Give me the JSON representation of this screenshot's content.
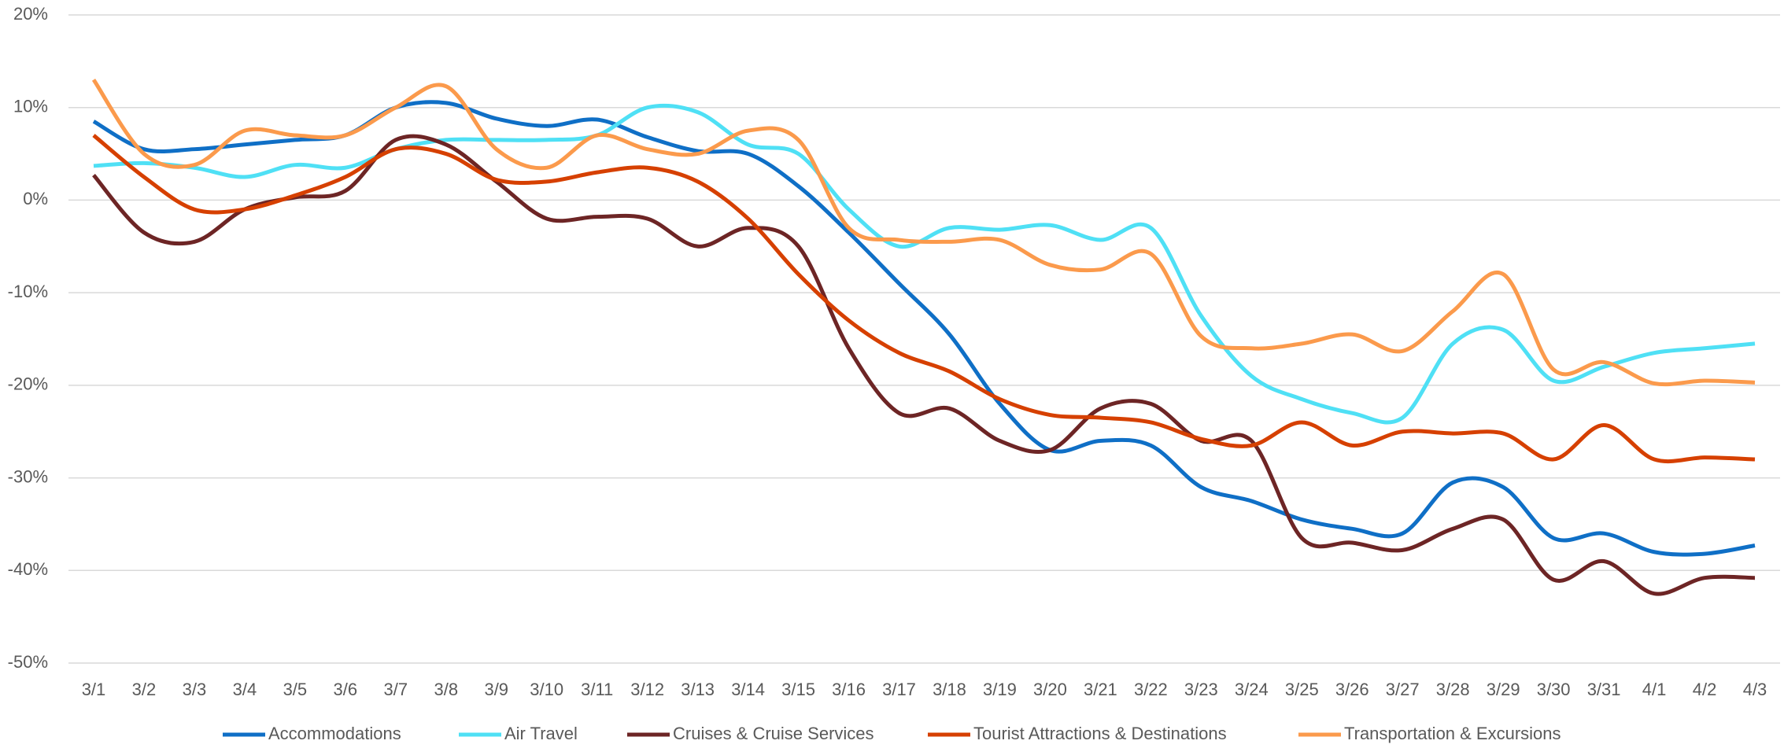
{
  "chart_data": {
    "type": "line",
    "categories": [
      "3/1",
      "3/2",
      "3/3",
      "3/4",
      "3/5",
      "3/6",
      "3/7",
      "3/8",
      "3/9",
      "3/10",
      "3/11",
      "3/12",
      "3/13",
      "3/14",
      "3/15",
      "3/16",
      "3/17",
      "3/18",
      "3/19",
      "3/20",
      "3/21",
      "3/22",
      "3/23",
      "3/24",
      "3/25",
      "3/26",
      "3/27",
      "3/28",
      "3/29",
      "3/30",
      "3/31",
      "4/1",
      "4/2",
      "4/3"
    ],
    "series": [
      {
        "name": "Accommodations",
        "color": "#0f6fc6",
        "values": [
          8.5,
          5.5,
          5.5,
          6,
          6.5,
          7,
          10,
          10.5,
          8.8,
          8,
          8.7,
          6.8,
          5.3,
          5,
          1.5,
          -3.5,
          -9,
          -14.5,
          -22,
          -27,
          -26,
          -26.5,
          -31,
          -32.5,
          -34.5,
          -35.5,
          -36,
          -30.5,
          -31,
          -36.5,
          -36,
          -38,
          -38.2,
          -37.3
        ]
      },
      {
        "name": "Air Travel",
        "color": "#4fe0f5",
        "values": [
          3.7,
          4,
          3.5,
          2.5,
          3.8,
          3.5,
          5.5,
          6.5,
          6.5,
          6.5,
          7,
          10,
          9.5,
          6,
          5,
          -1,
          -5,
          -3,
          -3.2,
          -2.7,
          -4.3,
          -3,
          -12.5,
          -19,
          -21.5,
          -23,
          -23.5,
          -15.5,
          -14,
          -19.5,
          -18,
          -16.5,
          -16,
          -15.5
        ]
      },
      {
        "name": "Cruises & Cruise Services",
        "color": "#6d2525",
        "values": [
          2.7,
          -3.5,
          -4.5,
          -1,
          0.3,
          1,
          6.5,
          6,
          2,
          -2,
          -1.8,
          -2,
          -5,
          -3,
          -5,
          -16,
          -23,
          -22.5,
          -26,
          -27,
          -22.5,
          -22,
          -26,
          -26,
          -36.5,
          -37,
          -37.8,
          -35.5,
          -34.5,
          -41,
          -39,
          -42.5,
          -40.8,
          -40.8
        ]
      },
      {
        "name": "Tourist Attractions & Destinations",
        "color": "#d64000",
        "values": [
          7,
          2.5,
          -1,
          -1,
          0.5,
          2.5,
          5.5,
          5,
          2.2,
          2,
          3,
          3.5,
          2,
          -2,
          -8,
          -13,
          -16.5,
          -18.5,
          -21.5,
          -23.2,
          -23.5,
          -24,
          -25.8,
          -26.5,
          -24,
          -26.5,
          -25,
          -25.2,
          -25.2,
          -28,
          -24.3,
          -28,
          -27.8,
          -28
        ]
      },
      {
        "name": "Transportation & Excursions",
        "color": "#fb9a4c",
        "values": [
          13,
          5,
          3.8,
          7.5,
          7,
          7,
          10,
          12.3,
          5.5,
          3.5,
          7,
          5.5,
          5,
          7.5,
          6.5,
          -3,
          -4.3,
          -4.5,
          -4.3,
          -7,
          -7.5,
          -5.8,
          -14.7,
          -16,
          -15.5,
          -14.5,
          -16.3,
          -12,
          -8,
          -18.3,
          -17.5,
          -19.8,
          -19.5,
          -19.7
        ]
      }
    ],
    "ylim": [
      -50,
      20
    ],
    "yticks": [
      {
        "value": -50,
        "label": "-50%"
      },
      {
        "value": -40,
        "label": "-40%"
      },
      {
        "value": -30,
        "label": "-30%"
      },
      {
        "value": -20,
        "label": "-20%"
      },
      {
        "value": -10,
        "label": "-10%"
      },
      {
        "value": 0,
        "label": "0%"
      },
      {
        "value": 10,
        "label": "10%"
      },
      {
        "value": 20,
        "label": "20%"
      }
    ],
    "grid": true,
    "legend": "bottom"
  }
}
